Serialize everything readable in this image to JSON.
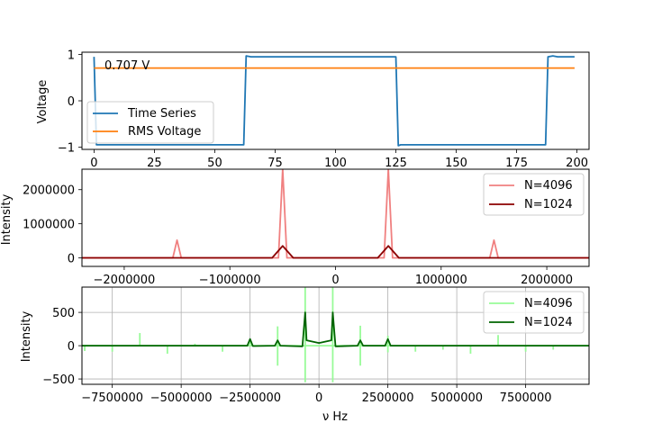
{
  "chart_data": [
    {
      "type": "line",
      "title": "",
      "xlabel": "",
      "ylabel": "Voltage",
      "xlim": [
        -5,
        205
      ],
      "ylim": [
        -1.05,
        1.05
      ],
      "xticks": [
        0,
        25,
        50,
        75,
        100,
        125,
        150,
        175,
        200
      ],
      "xtick_labels": [
        "0",
        "25",
        "50",
        "75",
        "100",
        "125",
        "150",
        "175",
        "200"
      ],
      "yticks": [
        -1,
        0,
        1
      ],
      "ytick_labels": [
        "−1",
        "0",
        "1"
      ],
      "grid": false,
      "legend_position": "lower-left",
      "annotation": "0.707 V",
      "annotation_at": [
        0,
        0.78
      ],
      "series": [
        {
          "name": "Time Series",
          "color": "#1f77b4",
          "points": [
            [
              0,
              0.95
            ],
            [
              1,
              -0.95
            ],
            [
              62,
              -0.95
            ],
            [
              63,
              0.97
            ],
            [
              65,
              0.95
            ],
            [
              100,
              0.95
            ],
            [
              125,
              0.95
            ],
            [
              126,
              -0.97
            ],
            [
              127,
              -0.95
            ],
            [
              187,
              -0.95
            ],
            [
              188,
              0.95
            ],
            [
              190,
              0.97
            ],
            [
              192,
              0.95
            ],
            [
              199,
              0.95
            ]
          ]
        },
        {
          "name": "RMS Voltage",
          "color": "#ff7f0e",
          "points": [
            [
              0,
              0.707
            ],
            [
              199,
              0.707
            ]
          ]
        }
      ]
    },
    {
      "type": "line",
      "title": "",
      "xlabel": "",
      "ylabel": "Intensity",
      "xlim": [
        -2400000,
        2400000
      ],
      "ylim": [
        -250000,
        2600000
      ],
      "xticks": [
        -2000000,
        -1000000,
        0,
        1000000,
        2000000
      ],
      "xtick_labels": [
        "−2000000",
        "−1000000",
        "0",
        "1000000",
        "2000000"
      ],
      "yticks": [
        0,
        1000000,
        2000000
      ],
      "ytick_labels": [
        "0",
        "1000000",
        "2000000"
      ],
      "grid": false,
      "legend_position": "top-right",
      "series": [
        {
          "name": "N=4096",
          "color": "#f08080",
          "points": [
            [
              -2400000,
              0
            ],
            [
              -1540000,
              0
            ],
            [
              -1500000,
              520000
            ],
            [
              -1460000,
              0
            ],
            [
              -540000,
              0
            ],
            [
              -500000,
              2600000
            ],
            [
              -460000,
              0
            ],
            [
              460000,
              0
            ],
            [
              500000,
              2600000
            ],
            [
              540000,
              0
            ],
            [
              1460000,
              0
            ],
            [
              1500000,
              520000
            ],
            [
              1540000,
              0
            ],
            [
              2400000,
              0
            ]
          ]
        },
        {
          "name": "N=1024",
          "color": "#8b0000",
          "points": [
            [
              -2400000,
              0
            ],
            [
              -600000,
              0
            ],
            [
              -500000,
              350000
            ],
            [
              -400000,
              0
            ],
            [
              400000,
              0
            ],
            [
              500000,
              350000
            ],
            [
              600000,
              0
            ],
            [
              2400000,
              0
            ]
          ]
        }
      ]
    },
    {
      "type": "line",
      "title": "",
      "xlabel": "ν Hz",
      "ylabel": "Intensity",
      "xlim": [
        -8600000,
        9800000
      ],
      "ylim": [
        -580,
        880
      ],
      "xticks": [
        -7500000,
        -5000000,
        -2500000,
        0,
        2500000,
        5000000,
        7500000
      ],
      "xtick_labels": [
        "−7500000",
        "−5000000",
        "−2500000",
        "0",
        "2500000",
        "5000000",
        "7500000"
      ],
      "yticks": [
        -500,
        0,
        500
      ],
      "ytick_labels": [
        "−500",
        "0",
        "500"
      ],
      "grid": true,
      "legend_position": "top-right",
      "series": [
        {
          "name": "N=4096",
          "color": "#98fb98",
          "spikes": [
            [
              -8500000,
              -80
            ],
            [
              -7500000,
              -90
            ],
            [
              -6500000,
              190
            ],
            [
              -5500000,
              -120
            ],
            [
              -4500000,
              30
            ],
            [
              -3500000,
              -90
            ],
            [
              -2500000,
              100
            ],
            [
              -1500000,
              290
            ],
            [
              -1500000,
              -300
            ],
            [
              -500000,
              880
            ],
            [
              -500000,
              -550
            ],
            [
              500000,
              880
            ],
            [
              500000,
              -550
            ],
            [
              1500000,
              300
            ],
            [
              1500000,
              -300
            ],
            [
              2500000,
              150
            ],
            [
              2500000,
              -100
            ],
            [
              3500000,
              -90
            ],
            [
              4500000,
              -60
            ],
            [
              5500000,
              -120
            ],
            [
              6500000,
              160
            ],
            [
              7500000,
              -90
            ],
            [
              8500000,
              -60
            ]
          ]
        },
        {
          "name": "N=1024",
          "color": "#006400",
          "points": [
            [
              -8600000,
              0
            ],
            [
              -2600000,
              0
            ],
            [
              -2500000,
              100
            ],
            [
              -2400000,
              -5
            ],
            [
              -1600000,
              0
            ],
            [
              -1500000,
              80
            ],
            [
              -1400000,
              0
            ],
            [
              -600000,
              -10
            ],
            [
              -500000,
              500
            ],
            [
              -450000,
              80
            ],
            [
              0,
              40
            ],
            [
              450000,
              80
            ],
            [
              500000,
              500
            ],
            [
              600000,
              -10
            ],
            [
              1400000,
              0
            ],
            [
              1500000,
              80
            ],
            [
              1600000,
              0
            ],
            [
              2400000,
              0
            ],
            [
              2500000,
              100
            ],
            [
              2600000,
              0
            ],
            [
              9800000,
              0
            ]
          ]
        }
      ]
    }
  ]
}
